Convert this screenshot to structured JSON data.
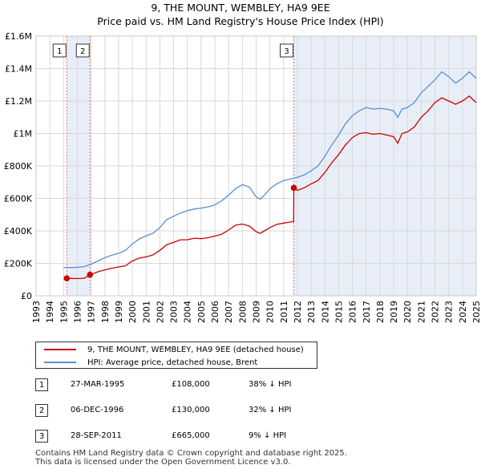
{
  "chart_data": {
    "type": "line",
    "title": "9, THE MOUNT, WEMBLEY, HA9 9EE",
    "subtitle": "Price paid vs. HM Land Registry's House Price Index (HPI)",
    "xlim": [
      1993,
      2025
    ],
    "ylim": [
      0,
      1600000
    ],
    "x_ticks": [
      "1993",
      "1994",
      "1995",
      "1996",
      "1997",
      "1998",
      "1999",
      "2000",
      "2001",
      "2002",
      "2003",
      "2004",
      "2005",
      "2006",
      "2007",
      "2008",
      "2009",
      "2010",
      "2011",
      "2012",
      "2013",
      "2014",
      "2015",
      "2016",
      "2017",
      "2018",
      "2019",
      "2020",
      "2021",
      "2022",
      "2023",
      "2024",
      "2025"
    ],
    "y_ticks": [
      {
        "value": 0,
        "label": "£0"
      },
      {
        "value": 200000,
        "label": "£200K"
      },
      {
        "value": 400000,
        "label": "£400K"
      },
      {
        "value": 600000,
        "label": "£600K"
      },
      {
        "value": 800000,
        "label": "£800K"
      },
      {
        "value": 1000000,
        "label": "£1M"
      },
      {
        "value": 1200000,
        "label": "£1.2M"
      },
      {
        "value": 1400000,
        "label": "£1.4M"
      },
      {
        "value": 1600000,
        "label": "£1.6M"
      }
    ],
    "grid": true,
    "colors": {
      "property": "#cc0000",
      "hpi": "#5b8fd1",
      "shade": "#e8eef8",
      "marker_line": "#e07070"
    },
    "shaded_ranges": [
      [
        1995.23,
        1996.92
      ],
      [
        2011.74,
        2025
      ]
    ],
    "series": [
      {
        "name": "9, THE MOUNT, WEMBLEY, HA9 9EE (detached house)",
        "color": "#cc0000",
        "points": [
          [
            1995.23,
            108000
          ],
          [
            1995.6,
            107000
          ],
          [
            1996.0,
            106000
          ],
          [
            1996.5,
            108000
          ],
          [
            1996.92,
            130000
          ],
          [
            1997.5,
            148000
          ],
          [
            1998.0,
            160000
          ],
          [
            1998.5,
            170000
          ],
          [
            1999.0,
            178000
          ],
          [
            1999.5,
            185000
          ],
          [
            2000.0,
            215000
          ],
          [
            2000.5,
            232000
          ],
          [
            2001.0,
            240000
          ],
          [
            2001.5,
            252000
          ],
          [
            2002.0,
            280000
          ],
          [
            2002.5,
            315000
          ],
          [
            2003.0,
            330000
          ],
          [
            2003.5,
            345000
          ],
          [
            2004.0,
            345000
          ],
          [
            2004.5,
            355000
          ],
          [
            2005.0,
            352000
          ],
          [
            2005.5,
            358000
          ],
          [
            2006.0,
            368000
          ],
          [
            2006.5,
            380000
          ],
          [
            2007.0,
            405000
          ],
          [
            2007.5,
            435000
          ],
          [
            2008.0,
            442000
          ],
          [
            2008.5,
            430000
          ],
          [
            2009.0,
            395000
          ],
          [
            2009.3,
            385000
          ],
          [
            2009.6,
            400000
          ],
          [
            2010.0,
            420000
          ],
          [
            2010.5,
            440000
          ],
          [
            2011.0,
            448000
          ],
          [
            2011.5,
            455000
          ],
          [
            2011.73,
            458000
          ],
          [
            2011.74,
            665000
          ],
          [
            2012.0,
            650000
          ],
          [
            2012.5,
            665000
          ],
          [
            2013.0,
            690000
          ],
          [
            2013.5,
            710000
          ],
          [
            2014.0,
            760000
          ],
          [
            2014.5,
            820000
          ],
          [
            2015.0,
            870000
          ],
          [
            2015.5,
            930000
          ],
          [
            2016.0,
            975000
          ],
          [
            2016.5,
            1000000
          ],
          [
            2017.0,
            1005000
          ],
          [
            2017.5,
            995000
          ],
          [
            2018.0,
            1000000
          ],
          [
            2018.5,
            990000
          ],
          [
            2019.0,
            980000
          ],
          [
            2019.3,
            940000
          ],
          [
            2019.6,
            1000000
          ],
          [
            2020.0,
            1010000
          ],
          [
            2020.5,
            1040000
          ],
          [
            2021.0,
            1100000
          ],
          [
            2021.5,
            1140000
          ],
          [
            2022.0,
            1190000
          ],
          [
            2022.5,
            1220000
          ],
          [
            2023.0,
            1200000
          ],
          [
            2023.5,
            1180000
          ],
          [
            2024.0,
            1200000
          ],
          [
            2024.5,
            1230000
          ],
          [
            2025.0,
            1190000
          ]
        ]
      },
      {
        "name": "HPI: Average price, detached house, Brent",
        "color": "#5b8fd1",
        "points": [
          [
            1995.0,
            175000
          ],
          [
            1995.5,
            174000
          ],
          [
            1996.0,
            176000
          ],
          [
            1996.5,
            180000
          ],
          [
            1997.0,
            195000
          ],
          [
            1997.5,
            215000
          ],
          [
            1998.0,
            235000
          ],
          [
            1998.5,
            250000
          ],
          [
            1999.0,
            262000
          ],
          [
            1999.5,
            280000
          ],
          [
            2000.0,
            320000
          ],
          [
            2000.5,
            350000
          ],
          [
            2001.0,
            370000
          ],
          [
            2001.5,
            385000
          ],
          [
            2002.0,
            420000
          ],
          [
            2002.5,
            470000
          ],
          [
            2003.0,
            490000
          ],
          [
            2003.5,
            510000
          ],
          [
            2004.0,
            525000
          ],
          [
            2004.5,
            535000
          ],
          [
            2005.0,
            540000
          ],
          [
            2005.5,
            548000
          ],
          [
            2006.0,
            560000
          ],
          [
            2006.5,
            585000
          ],
          [
            2007.0,
            620000
          ],
          [
            2007.5,
            660000
          ],
          [
            2008.0,
            685000
          ],
          [
            2008.5,
            670000
          ],
          [
            2009.0,
            610000
          ],
          [
            2009.3,
            595000
          ],
          [
            2009.6,
            620000
          ],
          [
            2010.0,
            660000
          ],
          [
            2010.5,
            690000
          ],
          [
            2011.0,
            710000
          ],
          [
            2011.5,
            720000
          ],
          [
            2012.0,
            730000
          ],
          [
            2012.5,
            745000
          ],
          [
            2013.0,
            770000
          ],
          [
            2013.5,
            800000
          ],
          [
            2014.0,
            860000
          ],
          [
            2014.5,
            930000
          ],
          [
            2015.0,
            990000
          ],
          [
            2015.5,
            1060000
          ],
          [
            2016.0,
            1110000
          ],
          [
            2016.5,
            1140000
          ],
          [
            2017.0,
            1160000
          ],
          [
            2017.5,
            1150000
          ],
          [
            2018.0,
            1155000
          ],
          [
            2018.5,
            1150000
          ],
          [
            2019.0,
            1140000
          ],
          [
            2019.3,
            1100000
          ],
          [
            2019.6,
            1150000
          ],
          [
            2020.0,
            1160000
          ],
          [
            2020.5,
            1190000
          ],
          [
            2021.0,
            1250000
          ],
          [
            2021.5,
            1290000
          ],
          [
            2022.0,
            1330000
          ],
          [
            2022.5,
            1380000
          ],
          [
            2023.0,
            1350000
          ],
          [
            2023.5,
            1310000
          ],
          [
            2024.0,
            1340000
          ],
          [
            2024.5,
            1380000
          ],
          [
            2025.0,
            1340000
          ]
        ]
      }
    ],
    "sales": [
      {
        "id": "1",
        "x": 1995.23,
        "y": 108000
      },
      {
        "id": "2",
        "x": 1996.92,
        "y": 130000
      },
      {
        "id": "3",
        "x": 2011.74,
        "y": 665000
      }
    ]
  },
  "legend": [
    {
      "label": "9, THE MOUNT, WEMBLEY, HA9 9EE (detached house)",
      "color": "#cc0000"
    },
    {
      "label": "HPI: Average price, detached house, Brent",
      "color": "#5b8fd1"
    }
  ],
  "sales_table": [
    {
      "num": "1",
      "date": "27-MAR-1995",
      "price": "£108,000",
      "hpi": "38% ↓ HPI"
    },
    {
      "num": "2",
      "date": "06-DEC-1996",
      "price": "£130,000",
      "hpi": "32% ↓ HPI"
    },
    {
      "num": "3",
      "date": "28-SEP-2011",
      "price": "£665,000",
      "hpi": "9% ↓ HPI"
    }
  ],
  "footer": {
    "line1": "Contains HM Land Registry data © Crown copyright and database right 2025.",
    "line2": "This data is licensed under the Open Government Licence v3.0."
  }
}
